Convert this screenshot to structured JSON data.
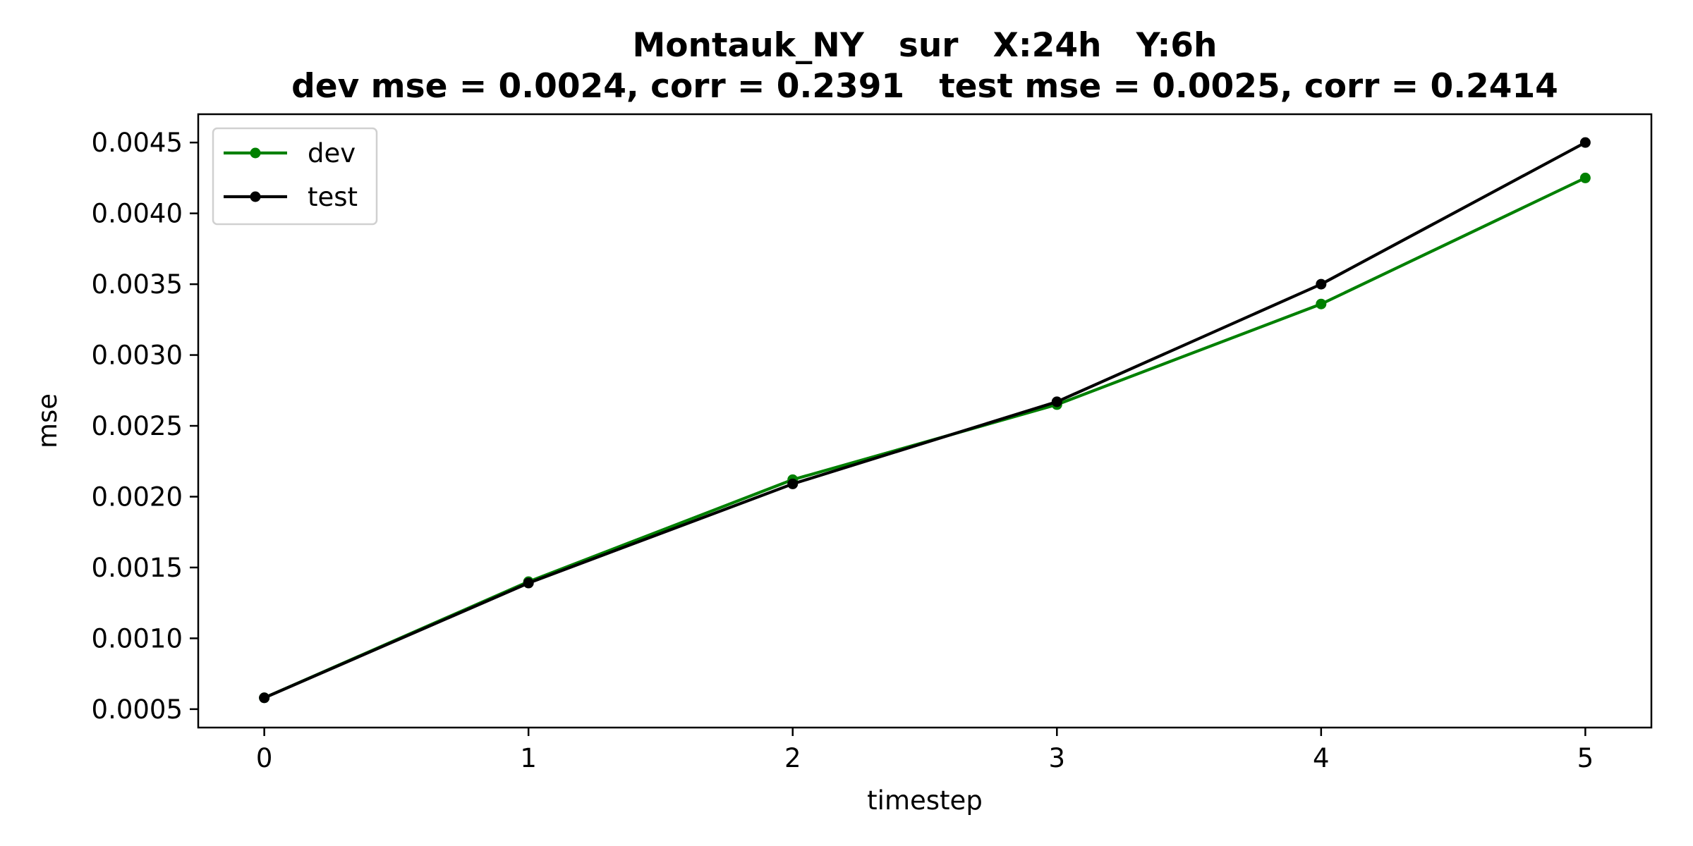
{
  "chart_data": {
    "type": "line",
    "title_line1": "Montauk_NY   sur   X:24h   Y:6h",
    "title_line2": "dev mse = 0.0024, corr = 0.2391   test mse = 0.0025, corr = 0.2414",
    "xlabel": "timestep",
    "ylabel": "mse",
    "x": [
      0,
      1,
      2,
      3,
      4,
      5
    ],
    "xlim": [
      -0.25,
      5.25
    ],
    "ylim": [
      0.00037,
      0.0047
    ],
    "xticks": [
      0,
      1,
      2,
      3,
      4,
      5
    ],
    "yticks": [
      0.0005,
      0.001,
      0.0015,
      0.002,
      0.0025,
      0.003,
      0.0035,
      0.004,
      0.0045
    ],
    "ytick_labels": [
      "0.0005",
      "0.0010",
      "0.0015",
      "0.0020",
      "0.0025",
      "0.0030",
      "0.0035",
      "0.0040",
      "0.0045"
    ],
    "grid": false,
    "legend_position": "top-left",
    "series": [
      {
        "name": "dev",
        "color": "#008000",
        "values": [
          0.00058,
          0.0014,
          0.00212,
          0.00265,
          0.00336,
          0.00425
        ]
      },
      {
        "name": "test",
        "color": "#000000",
        "values": [
          0.00058,
          0.00139,
          0.00209,
          0.00267,
          0.0035,
          0.0045
        ]
      }
    ]
  }
}
